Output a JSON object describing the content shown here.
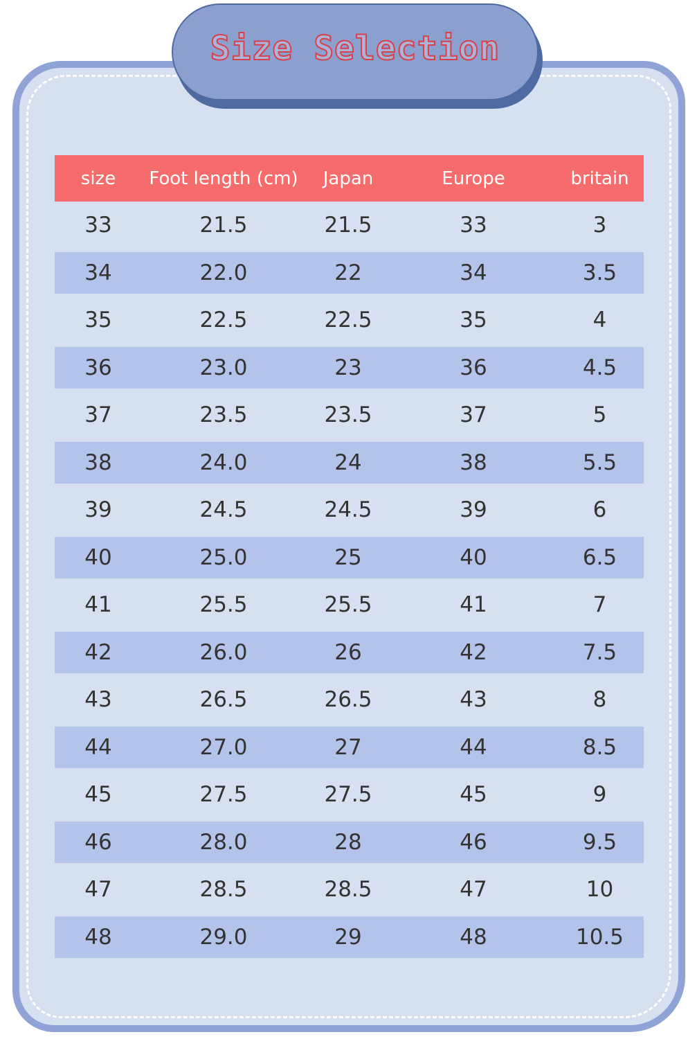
{
  "title": "Size Selection",
  "colors": {
    "header": "#f66b6b",
    "stripe": "#b3c3ea",
    "card": "#d6e0f1",
    "border": "#8fa3d6",
    "title_pill": "#8ca0cf",
    "title_text": "#d9404a"
  },
  "table": {
    "columns": [
      "size",
      "Foot length (cm)",
      "Japan",
      "Europe",
      "britain"
    ],
    "rows": [
      [
        "33",
        "21.5",
        "21.5",
        "33",
        "3"
      ],
      [
        "34",
        "22.0",
        "22",
        "34",
        "3.5"
      ],
      [
        "35",
        "22.5",
        "22.5",
        "35",
        "4"
      ],
      [
        "36",
        "23.0",
        "23",
        "36",
        "4.5"
      ],
      [
        "37",
        "23.5",
        "23.5",
        "37",
        "5"
      ],
      [
        "38",
        "24.0",
        "24",
        "38",
        "5.5"
      ],
      [
        "39",
        "24.5",
        "24.5",
        "39",
        "6"
      ],
      [
        "40",
        "25.0",
        "25",
        "40",
        "6.5"
      ],
      [
        "41",
        "25.5",
        "25.5",
        "41",
        "7"
      ],
      [
        "42",
        "26.0",
        "26",
        "42",
        "7.5"
      ],
      [
        "43",
        "26.5",
        "26.5",
        "43",
        "8"
      ],
      [
        "44",
        "27.0",
        "27",
        "44",
        "8.5"
      ],
      [
        "45",
        "27.5",
        "27.5",
        "45",
        "9"
      ],
      [
        "46",
        "28.0",
        "28",
        "46",
        "9.5"
      ],
      [
        "47",
        "28.5",
        "28.5",
        "47",
        "10"
      ],
      [
        "48",
        "29.0",
        "29",
        "48",
        "10.5"
      ]
    ]
  }
}
